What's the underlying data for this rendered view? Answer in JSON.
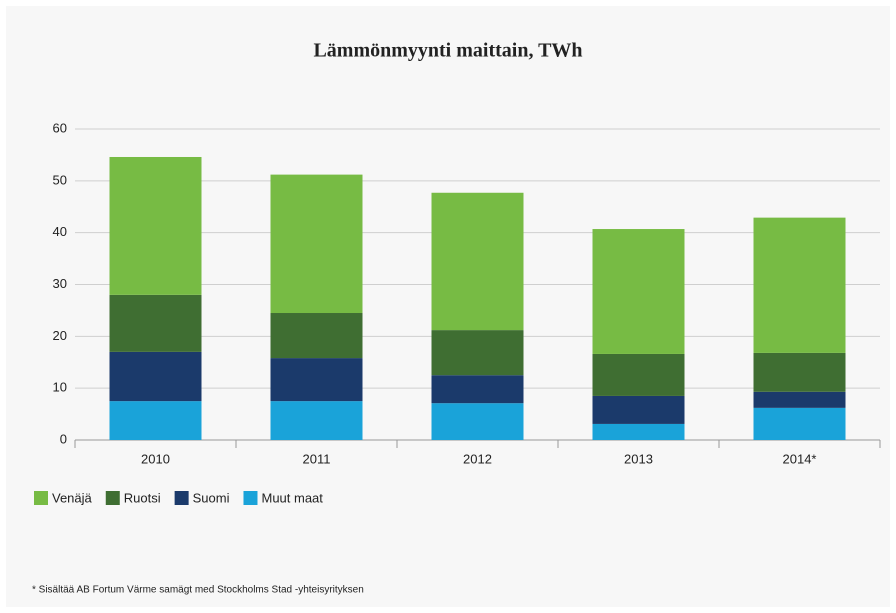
{
  "chart_data": {
    "type": "stacked_bar",
    "title": "Lämmönmyynti maittain, TWh",
    "categories": [
      "2010",
      "2011",
      "2012",
      "2013",
      "2014*"
    ],
    "series": [
      {
        "name": "Venäjä",
        "color": "#77bb44",
        "values": [
          26.6,
          26.7,
          26.5,
          24.1,
          26.1
        ]
      },
      {
        "name": "Ruotsi",
        "color": "#3f6e32",
        "values": [
          11,
          8.7,
          8.7,
          8.1,
          7.5
        ]
      },
      {
        "name": "Suomi",
        "color": "#1b3a6b",
        "values": [
          9.5,
          8.3,
          5.4,
          5.4,
          3.1
        ]
      },
      {
        "name": "Muut maat",
        "color": "#1aa3d9",
        "values": [
          7.5,
          7.5,
          7.1,
          3.1,
          6.2
        ]
      }
    ],
    "ylim": [
      0,
      60
    ],
    "yticks": [
      0,
      10,
      20,
      30,
      40,
      50,
      60
    ],
    "grid": true,
    "footnote": "* Sisältää AB Fortum Värme samägt med Stockholms Stad -yhteisyrityksen"
  }
}
